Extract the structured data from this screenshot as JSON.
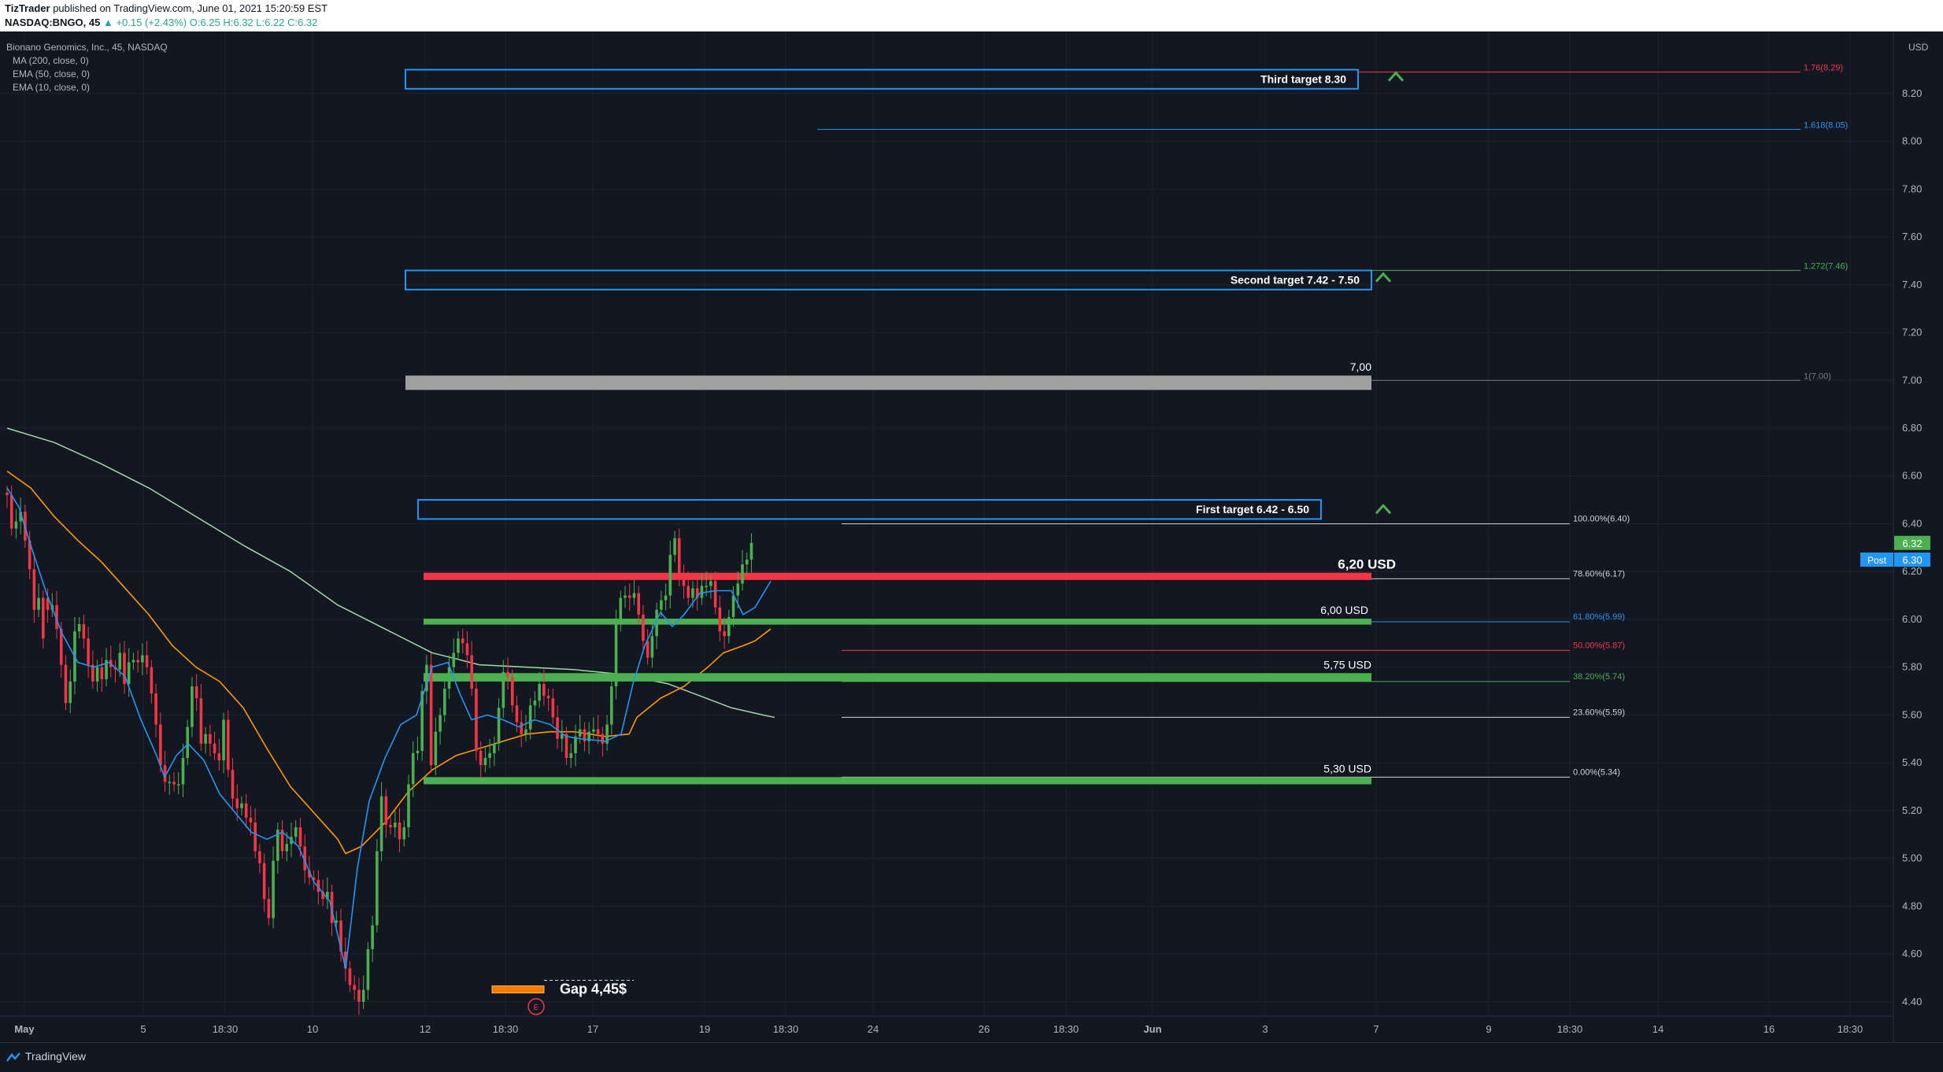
{
  "header": {
    "publisher": "TizTrader",
    "published_text": "published on TradingView.com, June 01, 2021 15:20:59 EST",
    "symbol_line": "NASDAQ:BNGO, 45",
    "change": "▲ +0.15 (+2.43%)",
    "ohlc": "O:6.25 H:6.32 L:6.22 C:6.32"
  },
  "legend": {
    "instrument": "Bionano Genomics, Inc., 45, NASDAQ",
    "ma200": "MA (200, close, 0)",
    "ema50": "EMA (50, close, 0)",
    "ema10": "EMA (10, close, 0)"
  },
  "footer": {
    "brand": "TradingView"
  },
  "colors": {
    "background": "#131722",
    "up": "#4caf50",
    "down": "#f23645",
    "ema10": "#2196f3",
    "ema50": "#ff9800",
    "ma200": "#a5d6a7",
    "box": "#2196f3"
  },
  "chart_data": {
    "type": "candlestick",
    "y_axis": {
      "unit": "USD",
      "ticks": [
        "8.20",
        "8.00",
        "7.80",
        "7.60",
        "7.40",
        "7.20",
        "7.00",
        "6.80",
        "6.60",
        "6.40",
        "6.20",
        "6.00",
        "5.80",
        "5.60",
        "5.40",
        "5.20",
        "5.00",
        "4.80",
        "4.60",
        "4.40"
      ],
      "range": [
        4.34,
        8.44
      ]
    },
    "x_axis": {
      "ticks": [
        "May",
        "5",
        "18:30",
        "10",
        "12",
        "18:30",
        "17",
        "19",
        "18:30",
        "24",
        "26",
        "18:30",
        "Jun",
        "3",
        "7",
        "9",
        "18:30",
        "14",
        "16",
        "18:30"
      ],
      "bold_ticks": [
        "May",
        "Jun"
      ],
      "range": [
        0,
        1545
      ]
    },
    "price_labels": {
      "last": "6.32",
      "post_label": "Post",
      "post": "6.30"
    },
    "targets": [
      {
        "label": "Third target 8.30",
        "price": 8.27
      },
      {
        "label": "Second target 7.42 - 7.50",
        "price": 7.43
      },
      {
        "label": "First target 6.42 - 6.50",
        "price": 6.46
      }
    ],
    "levels": [
      {
        "label": "7,00",
        "price": 7.0,
        "color": "#a0a0a0"
      },
      {
        "label": "6,20 USD",
        "price": 6.18,
        "color": "#f23645"
      },
      {
        "label": "6,00 USD",
        "price": 5.99,
        "color": "#4caf50"
      },
      {
        "label": "5,75 USD",
        "price": 5.76,
        "color": "#4caf50"
      },
      {
        "label": "5,30 USD",
        "price": 5.33,
        "color": "#4caf50"
      }
    ],
    "fib_retracement": [
      {
        "label": "100.00%(6.40)",
        "price": 6.4,
        "color": "#d1d4dc"
      },
      {
        "label": "78.60%(6.17)",
        "price": 6.17,
        "color": "#d1d4dc"
      },
      {
        "label": "61.80%(5.99)",
        "price": 5.99,
        "color": "#2196f3"
      },
      {
        "label": "50.00%(5.87)",
        "price": 5.87,
        "color": "#f23645"
      },
      {
        "label": "38.20%(5.74)",
        "price": 5.74,
        "color": "#4caf50"
      },
      {
        "label": "23.60%(5.59)",
        "price": 5.59,
        "color": "#d1d4dc"
      },
      {
        "label": "0.00%(5.34)",
        "price": 5.34,
        "color": "#d1d4dc"
      }
    ],
    "fib_extension": [
      {
        "label": "1.76(8.29)",
        "price": 8.29,
        "color": "#f23645"
      },
      {
        "label": "1.618(8.05)",
        "price": 8.05,
        "color": "#2196f3"
      },
      {
        "label": "1.272(7.46)",
        "price": 7.46,
        "color": "#4caf50"
      },
      {
        "label": "1(7.00)",
        "price": 7.0,
        "color": "#787b86"
      }
    ],
    "gap": {
      "label": "Gap 4,45$",
      "price": 4.45,
      "event_marker": "E"
    },
    "candles": [
      [
        6.53,
        6.52
      ],
      [
        6.52,
        6.38
      ],
      [
        6.38,
        6.41
      ],
      [
        6.41,
        6.45
      ],
      [
        6.45,
        6.33
      ],
      [
        6.33,
        6.21
      ],
      [
        6.21,
        6.04
      ],
      [
        6.04,
        6.09
      ],
      [
        6.09,
        5.92
      ],
      [
        6.09,
        6.04
      ],
      [
        6.04,
        6.06
      ],
      [
        6.06,
        5.96
      ],
      [
        5.96,
        5.81
      ],
      [
        5.81,
        5.65
      ],
      [
        5.65,
        5.74
      ],
      [
        5.74,
        5.95
      ],
      [
        5.95,
        5.98
      ],
      [
        5.98,
        5.92
      ],
      [
        5.92,
        5.81
      ],
      [
        5.81,
        5.74
      ],
      [
        5.74,
        5.8
      ],
      [
        5.8,
        5.75
      ],
      [
        5.75,
        5.83
      ],
      [
        5.83,
        5.8
      ],
      [
        5.8,
        5.79
      ],
      [
        5.79,
        5.86
      ],
      [
        5.86,
        5.73
      ],
      [
        5.73,
        5.82
      ],
      [
        5.82,
        5.83
      ],
      [
        5.83,
        5.82
      ],
      [
        5.82,
        5.85
      ],
      [
        5.85,
        5.8
      ],
      [
        5.8,
        5.69
      ],
      [
        5.69,
        5.56
      ],
      [
        5.56,
        5.39
      ],
      [
        5.39,
        5.32
      ],
      [
        5.32,
        5.32
      ],
      [
        5.32,
        5.31
      ],
      [
        5.31,
        5.31
      ],
      [
        5.31,
        5.42
      ],
      [
        5.42,
        5.55
      ],
      [
        5.55,
        5.72
      ],
      [
        5.72,
        5.67
      ],
      [
        5.67,
        5.48
      ],
      [
        5.48,
        5.52
      ],
      [
        5.52,
        5.48
      ],
      [
        5.48,
        5.44
      ],
      [
        5.44,
        5.41
      ],
      [
        5.41,
        5.58
      ],
      [
        5.58,
        5.37
      ],
      [
        5.37,
        5.25
      ],
      [
        5.25,
        5.21
      ],
      [
        5.21,
        5.23
      ],
      [
        5.23,
        5.17
      ],
      [
        5.17,
        5.15
      ],
      [
        5.15,
        5.03
      ],
      [
        5.03,
        4.98
      ],
      [
        4.98,
        4.83
      ],
      [
        4.83,
        4.75
      ],
      [
        4.75,
        4.99
      ],
      [
        4.99,
        5.12
      ],
      [
        5.12,
        5.03
      ],
      [
        5.03,
        5.06
      ],
      [
        5.06,
        5.09
      ],
      [
        5.09,
        5.13
      ],
      [
        5.13,
        5.05
      ],
      [
        5.05,
        4.95
      ],
      [
        4.95,
        4.92
      ],
      [
        4.92,
        4.91
      ],
      [
        4.91,
        4.86
      ],
      [
        4.86,
        4.83
      ],
      [
        4.83,
        4.86
      ],
      [
        4.86,
        4.73
      ],
      [
        4.73,
        4.74
      ],
      [
        4.74,
        4.61
      ],
      [
        4.61,
        4.54
      ],
      [
        4.54,
        4.47
      ],
      [
        4.47,
        4.45
      ],
      [
        4.45,
        4.4
      ],
      [
        4.4,
        4.45
      ],
      [
        4.45,
        4.62
      ],
      [
        4.62,
        4.72
      ],
      [
        4.72,
        5.03
      ],
      [
        5.03,
        5.26
      ],
      [
        5.26,
        5.14
      ],
      [
        5.14,
        5.13
      ],
      [
        5.13,
        5.15
      ],
      [
        5.15,
        5.08
      ],
      [
        5.08,
        5.13
      ],
      [
        5.13,
        5.31
      ],
      [
        5.31,
        5.44
      ],
      [
        5.44,
        5.45
      ],
      [
        5.45,
        5.7
      ],
      [
        5.7,
        5.81
      ],
      [
        5.81,
        5.39
      ],
      [
        5.39,
        5.53
      ],
      [
        5.53,
        5.6
      ],
      [
        5.6,
        5.71
      ],
      [
        5.71,
        5.8
      ],
      [
        5.8,
        5.86
      ],
      [
        5.86,
        5.92
      ],
      [
        5.92,
        5.9
      ],
      [
        5.9,
        5.85
      ],
      [
        5.85,
        5.71
      ],
      [
        5.71,
        5.45
      ],
      [
        5.45,
        5.39
      ],
      [
        5.39,
        5.42
      ],
      [
        5.42,
        5.44
      ],
      [
        5.44,
        5.48
      ],
      [
        5.48,
        5.63
      ],
      [
        5.63,
        5.78
      ],
      [
        5.78,
        5.76
      ],
      [
        5.76,
        5.64
      ],
      [
        5.64,
        5.57
      ],
      [
        5.57,
        5.52
      ],
      [
        5.52,
        5.54
      ],
      [
        5.54,
        5.64
      ],
      [
        5.64,
        5.66
      ],
      [
        5.66,
        5.73
      ],
      [
        5.73,
        5.68
      ],
      [
        5.68,
        5.67
      ],
      [
        5.67,
        5.59
      ],
      [
        5.59,
        5.5
      ],
      [
        5.5,
        5.52
      ],
      [
        5.52,
        5.42
      ],
      [
        5.42,
        5.44
      ],
      [
        5.44,
        5.51
      ],
      [
        5.51,
        5.54
      ],
      [
        5.54,
        5.49
      ],
      [
        5.49,
        5.53
      ],
      [
        5.53,
        5.54
      ],
      [
        5.54,
        5.52
      ],
      [
        5.52,
        5.48
      ],
      [
        5.48,
        5.56
      ],
      [
        5.56,
        5.72
      ],
      [
        5.72,
        5.98
      ],
      [
        5.98,
        6.09
      ],
      [
        6.09,
        6.1
      ],
      [
        6.1,
        6.09
      ],
      [
        6.09,
        6.11
      ],
      [
        6.11,
        6.02
      ],
      [
        6.02,
        5.91
      ],
      [
        5.91,
        5.84
      ],
      [
        5.84,
        5.93
      ],
      [
        5.93,
        6.04
      ],
      [
        6.04,
        6.08
      ],
      [
        6.08,
        6.1
      ],
      [
        6.1,
        6.27
      ],
      [
        6.27,
        6.34
      ],
      [
        6.34,
        6.18
      ],
      [
        6.18,
        6.14
      ],
      [
        6.14,
        6.09
      ],
      [
        6.09,
        6.13
      ],
      [
        6.13,
        6.09
      ],
      [
        6.09,
        6.14
      ],
      [
        6.14,
        6.14
      ],
      [
        6.14,
        6.16
      ],
      [
        6.16,
        6.05
      ],
      [
        6.05,
        5.95
      ],
      [
        5.95,
        5.93
      ],
      [
        5.93,
        6.01
      ],
      [
        6.01,
        6.1
      ],
      [
        6.1,
        6.15
      ],
      [
        6.15,
        6.23
      ],
      [
        6.23,
        6.25
      ],
      [
        6.25,
        6.32
      ]
    ],
    "series": [
      {
        "name": "MA (200, close, 0)",
        "x": [
          0,
          60,
          120,
          180,
          240,
          300,
          360,
          420,
          480,
          540,
          600,
          660,
          720,
          780,
          840,
          880,
          920,
          960,
          975
        ],
        "values": [
          6.8,
          6.74,
          6.65,
          6.55,
          6.43,
          6.31,
          6.2,
          6.06,
          5.96,
          5.86,
          5.81,
          5.8,
          5.79,
          5.77,
          5.73,
          5.68,
          5.63,
          5.6,
          5.59
        ]
      },
      {
        "name": "EMA (50, close, 0)",
        "x": [
          0,
          30,
          60,
          90,
          120,
          150,
          180,
          210,
          240,
          270,
          300,
          330,
          360,
          390,
          420,
          430,
          450,
          480,
          510,
          540,
          570,
          600,
          630,
          660,
          690,
          720,
          760,
          790,
          800,
          830,
          860,
          890,
          910,
          935,
          950,
          970
        ],
        "values": [
          6.62,
          6.55,
          6.43,
          6.33,
          6.24,
          6.13,
          6.02,
          5.89,
          5.8,
          5.74,
          5.63,
          5.46,
          5.3,
          5.19,
          5.08,
          5.02,
          5.05,
          5.15,
          5.28,
          5.37,
          5.43,
          5.46,
          5.49,
          5.52,
          5.53,
          5.53,
          5.51,
          5.52,
          5.59,
          5.67,
          5.72,
          5.8,
          5.86,
          5.89,
          5.91,
          5.96
        ]
      },
      {
        "name": "EMA (10, close, 0)",
        "x": [
          0,
          15,
          30,
          50,
          70,
          90,
          110,
          130,
          150,
          170,
          190,
          200,
          215,
          230,
          250,
          270,
          290,
          310,
          330,
          350,
          370,
          390,
          410,
          430,
          445,
          460,
          480,
          500,
          520,
          540,
          560,
          575,
          590,
          610,
          630,
          650,
          670,
          690,
          710,
          730,
          760,
          780,
          795,
          810,
          830,
          845,
          860,
          880,
          900,
          920,
          935,
          950,
          970
        ],
        "values": [
          6.55,
          6.47,
          6.31,
          6.11,
          5.94,
          5.82,
          5.8,
          5.82,
          5.76,
          5.58,
          5.43,
          5.34,
          5.43,
          5.48,
          5.41,
          5.27,
          5.19,
          5.11,
          5.08,
          5.11,
          5.05,
          4.9,
          4.82,
          4.54,
          4.96,
          5.24,
          5.42,
          5.56,
          5.6,
          5.8,
          5.82,
          5.69,
          5.58,
          5.6,
          5.58,
          5.55,
          5.58,
          5.56,
          5.51,
          5.5,
          5.49,
          5.52,
          5.73,
          5.89,
          6.03,
          5.97,
          6.02,
          6.11,
          6.12,
          6.12,
          6.02,
          6.05,
          6.16
        ]
      }
    ]
  }
}
